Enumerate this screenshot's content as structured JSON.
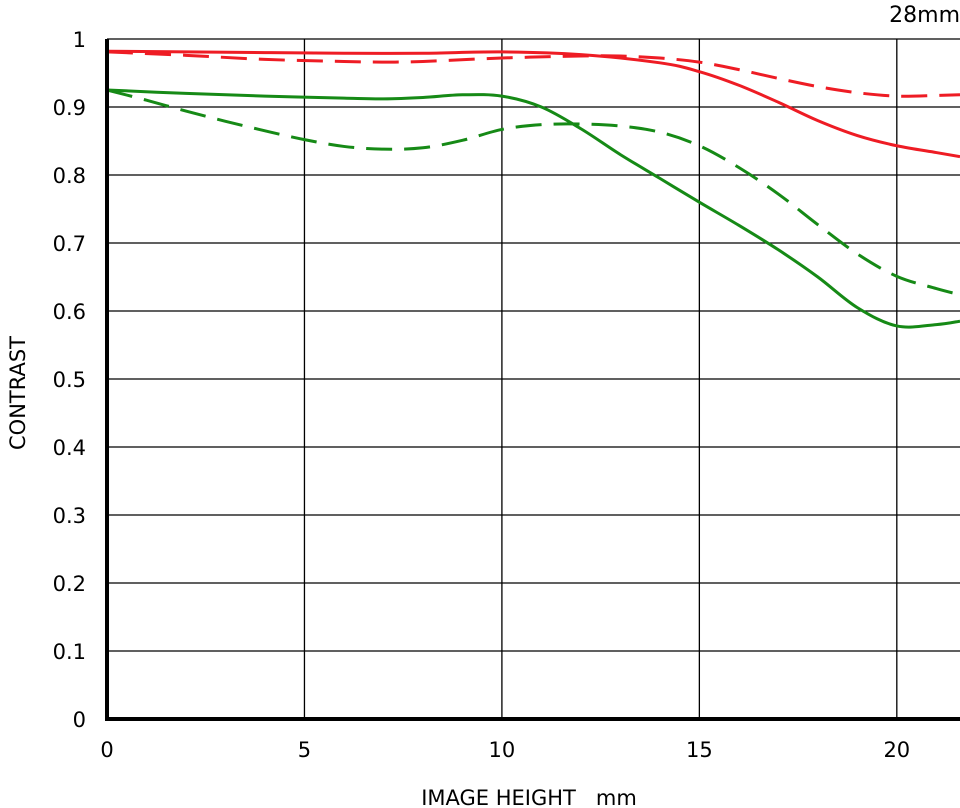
{
  "chart_data": {
    "type": "line",
    "title": "28mm",
    "xlabel": "IMAGE HEIGHT   mm",
    "ylabel": "CONTRAST",
    "xlim": [
      0,
      21.6
    ],
    "ylim": [
      0,
      1
    ],
    "x_ticks": [
      0,
      5,
      10,
      15,
      20
    ],
    "y_ticks": [
      0,
      0.1,
      0.2,
      0.3,
      0.4,
      0.5,
      0.6,
      0.7,
      0.8,
      0.9,
      1
    ],
    "y_tick_labels": [
      "0",
      "0.1",
      "0.2",
      "0.3",
      "0.4",
      "0.5",
      "0.6",
      "0.7",
      "0.8",
      "0.9",
      "1"
    ],
    "x_tick_labels": [
      "0",
      "5",
      "10",
      "15",
      "20"
    ],
    "grid": true,
    "series": [
      {
        "color": "#ee1c24",
        "dashed": false,
        "x": [
          0,
          2,
          4,
          6,
          8,
          10,
          12,
          14,
          15,
          16,
          17,
          18,
          19,
          20,
          21,
          21.6
        ],
        "y": [
          0.982,
          0.981,
          0.98,
          0.979,
          0.979,
          0.981,
          0.977,
          0.965,
          0.952,
          0.932,
          0.907,
          0.88,
          0.858,
          0.843,
          0.833,
          0.827
        ]
      },
      {
        "color": "#ee1c24",
        "dashed": true,
        "x": [
          0,
          2,
          4,
          6,
          7,
          8,
          10,
          12,
          13,
          14,
          15,
          16,
          17,
          18,
          19,
          20,
          21,
          21.6
        ],
        "y": [
          0.981,
          0.976,
          0.97,
          0.967,
          0.966,
          0.967,
          0.972,
          0.975,
          0.975,
          0.972,
          0.966,
          0.955,
          0.942,
          0.93,
          0.921,
          0.916,
          0.917,
          0.918
        ]
      },
      {
        "color": "#168a16",
        "dashed": false,
        "x": [
          0,
          2,
          4,
          6,
          7,
          8,
          9,
          10,
          11,
          12,
          13,
          14,
          15,
          16,
          17,
          18,
          19,
          20,
          21,
          21.6
        ],
        "y": [
          0.925,
          0.92,
          0.916,
          0.913,
          0.912,
          0.914,
          0.918,
          0.916,
          0.9,
          0.868,
          0.83,
          0.795,
          0.76,
          0.726,
          0.69,
          0.65,
          0.605,
          0.578,
          0.58,
          0.585
        ]
      },
      {
        "color": "#168a16",
        "dashed": true,
        "x": [
          0,
          1,
          2,
          3,
          4,
          5,
          6,
          7,
          8,
          9,
          10,
          11,
          12,
          13,
          14,
          15,
          16,
          17,
          18,
          19,
          20,
          21,
          21.6
        ],
        "y": [
          0.925,
          0.91,
          0.894,
          0.879,
          0.865,
          0.852,
          0.842,
          0.838,
          0.84,
          0.851,
          0.867,
          0.874,
          0.875,
          0.872,
          0.863,
          0.843,
          0.811,
          0.772,
          0.727,
          0.684,
          0.651,
          0.633,
          0.624
        ]
      }
    ]
  }
}
